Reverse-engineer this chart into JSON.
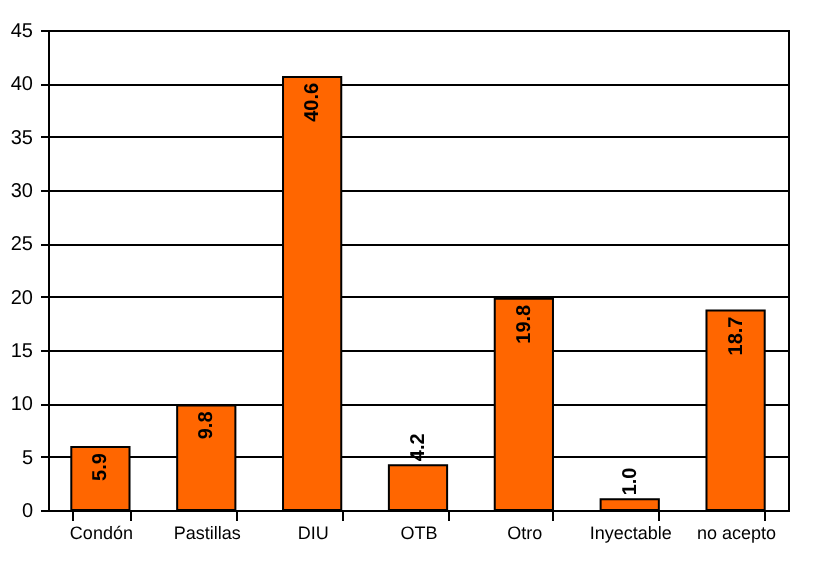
{
  "chart_data": {
    "type": "bar",
    "categories": [
      "Condón",
      "Pastillas",
      "DIU",
      "OTB",
      "Otro",
      "Inyectable",
      "no acepto"
    ],
    "values": [
      5.9,
      9.8,
      40.6,
      4.2,
      19.8,
      1.0,
      18.7
    ],
    "value_labels": [
      "5.9",
      "9.8",
      "40.6",
      "4.2",
      "19.8",
      "1.0",
      "18.7"
    ],
    "color": "#ff6600",
    "ylim": [
      0,
      45
    ],
    "yticks": [
      0,
      5,
      10,
      15,
      20,
      25,
      30,
      35,
      40,
      45
    ],
    "grid": "y"
  }
}
